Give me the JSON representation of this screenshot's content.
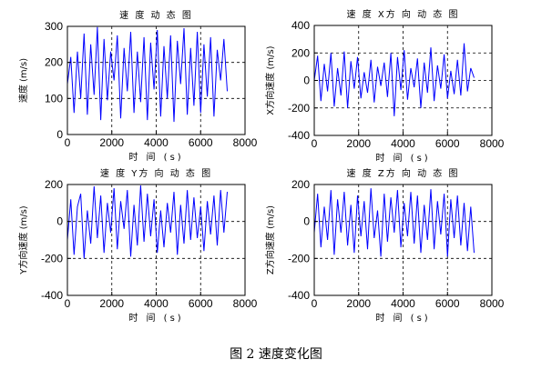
{
  "caption": "图 2  速度变化图",
  "chart_data": [
    {
      "type": "line",
      "title": "速 度 动 态 图",
      "xlabel": "时 间 (s)",
      "ylabel": "速度 (m/s)",
      "xlim": [
        0,
        8000
      ],
      "ylim": [
        0,
        300
      ],
      "xticks": [
        0,
        2000,
        4000,
        6000,
        8000
      ],
      "yticks": [
        0,
        100,
        200,
        300
      ],
      "grid": "dashed",
      "line_color": "#0000ff",
      "x_end": 7200,
      "x": [
        0,
        150,
        300,
        450,
        600,
        750,
        900,
        1050,
        1200,
        1350,
        1500,
        1650,
        1800,
        1950,
        2100,
        2250,
        2400,
        2550,
        2700,
        2850,
        3000,
        3150,
        3300,
        3450,
        3600,
        3750,
        3900,
        4050,
        4200,
        4350,
        4500,
        4650,
        4800,
        4950,
        5100,
        5250,
        5400,
        5550,
        5700,
        5850,
        6000,
        6150,
        6300,
        6450,
        6600,
        6750,
        6900,
        7050,
        7200
      ],
      "y": [
        140,
        215,
        60,
        230,
        100,
        280,
        55,
        250,
        110,
        298,
        40,
        265,
        95,
        230,
        150,
        275,
        45,
        240,
        120,
        285,
        60,
        230,
        90,
        270,
        40,
        255,
        125,
        290,
        50,
        245,
        100,
        275,
        35,
        260,
        140,
        295,
        55,
        240,
        80,
        285,
        60,
        250,
        105,
        270,
        50,
        235,
        150,
        265,
        120
      ]
    },
    {
      "type": "line",
      "title": "速 度 X方 向 动 态 图",
      "xlabel": "时 间 (s)",
      "ylabel": "X方向速度 (m/s)",
      "xlim": [
        0,
        8000
      ],
      "ylim": [
        -400,
        400
      ],
      "xticks": [
        0,
        2000,
        4000,
        6000,
        8000
      ],
      "yticks": [
        -400,
        -200,
        0,
        200,
        400
      ],
      "grid": "dashed",
      "line_color": "#0000ff",
      "x_end": 7200,
      "x": [
        0,
        150,
        300,
        450,
        600,
        750,
        900,
        1050,
        1200,
        1350,
        1500,
        1650,
        1800,
        1950,
        2100,
        2250,
        2400,
        2550,
        2700,
        2850,
        3000,
        3150,
        3300,
        3450,
        3600,
        3750,
        3900,
        4050,
        4200,
        4350,
        4500,
        4650,
        4800,
        4950,
        5100,
        5250,
        5400,
        5550,
        5700,
        5850,
        6000,
        6150,
        6300,
        6450,
        6600,
        6750,
        6900,
        7050,
        7200
      ],
      "y": [
        0,
        180,
        -150,
        120,
        -80,
        200,
        -190,
        90,
        -110,
        210,
        -200,
        140,
        -60,
        170,
        -130,
        60,
        -90,
        150,
        -160,
        100,
        -40,
        130,
        -120,
        200,
        -260,
        170,
        -70,
        220,
        -140,
        90,
        -50,
        160,
        -200,
        130,
        -90,
        240,
        -150,
        110,
        -60,
        190,
        -130,
        70,
        -100,
        150,
        -110,
        270,
        -80,
        90,
        20
      ]
    },
    {
      "type": "line",
      "title": "速 度 Y方 向 动 态 图",
      "xlabel": "时 间 (s)",
      "ylabel": "Y方向速度 (m/s)",
      "xlim": [
        0,
        8000
      ],
      "ylim": [
        -400,
        200
      ],
      "xticks": [
        0,
        2000,
        4000,
        6000,
        8000
      ],
      "yticks": [
        -400,
        -200,
        0,
        200
      ],
      "grid": "dashed",
      "line_color": "#0000ff",
      "x_end": 7200,
      "x": [
        0,
        150,
        300,
        450,
        600,
        750,
        900,
        1050,
        1200,
        1350,
        1500,
        1650,
        1800,
        1950,
        2100,
        2250,
        2400,
        2550,
        2700,
        2850,
        3000,
        3150,
        3300,
        3450,
        3600,
        3750,
        3900,
        4050,
        4200,
        4350,
        4500,
        4650,
        4800,
        4950,
        5100,
        5250,
        5400,
        5550,
        5700,
        5850,
        6000,
        6150,
        6300,
        6450,
        6600,
        6750,
        6900,
        7050,
        7200
      ],
      "y": [
        -100,
        120,
        -180,
        80,
        150,
        -200,
        60,
        -120,
        190,
        -90,
        140,
        -170,
        100,
        -60,
        180,
        -150,
        110,
        -40,
        170,
        -190,
        90,
        -130,
        195,
        -110,
        150,
        -80,
        120,
        -170,
        60,
        -140,
        100,
        -60,
        160,
        -180,
        90,
        -120,
        170,
        -100,
        130,
        -90,
        80,
        -160,
        110,
        -70,
        140,
        -130,
        170,
        -60,
        160
      ]
    },
    {
      "type": "line",
      "title": "速 度 Z方 向 动 态 图",
      "xlabel": "时 间 (s)",
      "ylabel": "Z方向速度 (m/s)",
      "xlim": [
        0,
        8000
      ],
      "ylim": [
        -400,
        200
      ],
      "xticks": [
        0,
        2000,
        4000,
        6000,
        8000
      ],
      "yticks": [
        -400,
        -200,
        0,
        200
      ],
      "grid": "dashed",
      "line_color": "#0000ff",
      "x_end": 7200,
      "x": [
        0,
        150,
        300,
        450,
        600,
        750,
        900,
        1050,
        1200,
        1350,
        1500,
        1650,
        1800,
        1950,
        2100,
        2250,
        2400,
        2550,
        2700,
        2850,
        3000,
        3150,
        3300,
        3450,
        3600,
        3750,
        3900,
        4050,
        4200,
        4350,
        4500,
        4650,
        4800,
        4950,
        5100,
        5250,
        5400,
        5550,
        5700,
        5850,
        6000,
        6150,
        6300,
        6450,
        6600,
        6750,
        6900,
        7050,
        7200
      ],
      "y": [
        -60,
        150,
        -140,
        80,
        -100,
        170,
        -180,
        120,
        -60,
        160,
        -130,
        90,
        -170,
        140,
        -80,
        110,
        -150,
        180,
        -90,
        60,
        -190,
        150,
        -110,
        130,
        -60,
        170,
        -140,
        100,
        -80,
        160,
        -120,
        140,
        -170,
        90,
        -100,
        175,
        -150,
        110,
        -70,
        150,
        -190,
        120,
        -90,
        140,
        -130,
        100,
        -160,
        80,
        -170
      ]
    }
  ]
}
